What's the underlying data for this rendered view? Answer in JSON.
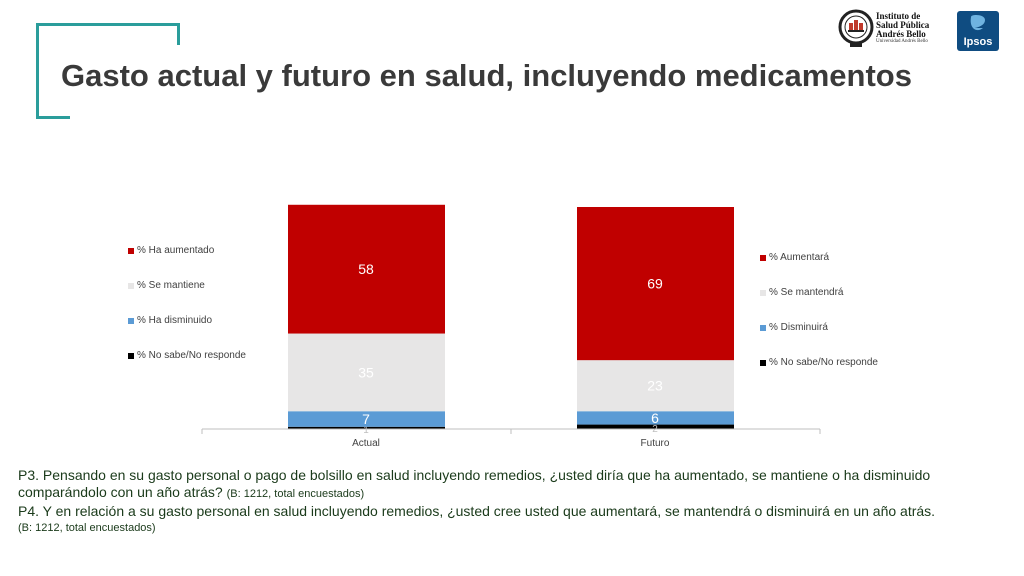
{
  "header": {
    "title": "Gasto actual y futuro en salud, incluyendo medicamentos"
  },
  "logos": {
    "institute_lines": [
      "Instituto de",
      "Salud Pública",
      "Andrés Bello"
    ],
    "institute_sub": "Universidad Andrés Bello",
    "ipsos": "Ipsos"
  },
  "chart_data": {
    "type": "bar",
    "stacked": true,
    "categories": [
      "Actual",
      "Futuro"
    ],
    "ylim": [
      0,
      100
    ],
    "grid": false,
    "series": [
      {
        "name": "% No sabe/No responde",
        "values": [
          1,
          2
        ],
        "color": "#000000",
        "label_color": "#bfbfbf"
      },
      {
        "name": "% Ha disminuido / % Disminuirá",
        "values": [
          7,
          6
        ],
        "color": "#5b9bd5",
        "label_color": "#ffffff"
      },
      {
        "name": "% Se mantiene / % Se mantendrá",
        "values": [
          35,
          23
        ],
        "color": "#e7e6e6",
        "label_color": "#ffffff"
      },
      {
        "name": "% Ha aumentado / % Aumentará",
        "values": [
          58,
          69
        ],
        "color": "#c00000",
        "label_color": "#ffffff"
      }
    ],
    "legend_left": {
      "placement": "left",
      "items": [
        {
          "label": "% Ha aumentado",
          "color": "#c00000"
        },
        {
          "label": "% Se mantiene",
          "color": "#e7e6e6"
        },
        {
          "label": "% Ha disminuido",
          "color": "#5b9bd5"
        },
        {
          "label": "% No sabe/No responde",
          "color": "#000000"
        }
      ]
    },
    "legend_right": {
      "placement": "right",
      "items": [
        {
          "label": "% Aumentará",
          "color": "#c00000"
        },
        {
          "label": "% Se mantendrá",
          "color": "#e7e6e6"
        },
        {
          "label": "% Disminuirá",
          "color": "#5b9bd5"
        },
        {
          "label": "% No sabe/No responde",
          "color": "#000000"
        }
      ]
    }
  },
  "footnote": {
    "p3_question": "P3. Pensando en su gasto personal o pago de bolsillo en salud incluyendo remedios, ¿usted diría que ha aumentado, se mantiene o ha disminuido comparándolo con un año atrás?",
    "p3_base": "(B: 1212, total encuestados)",
    "p4_question": "P4. Y en relación a su gasto personal en salud incluyendo remedios, ¿usted cree usted que aumentará, se mantendrá o disminuirá en un año atrás.",
    "p4_base": "(B: 1212, total encuestados)"
  }
}
